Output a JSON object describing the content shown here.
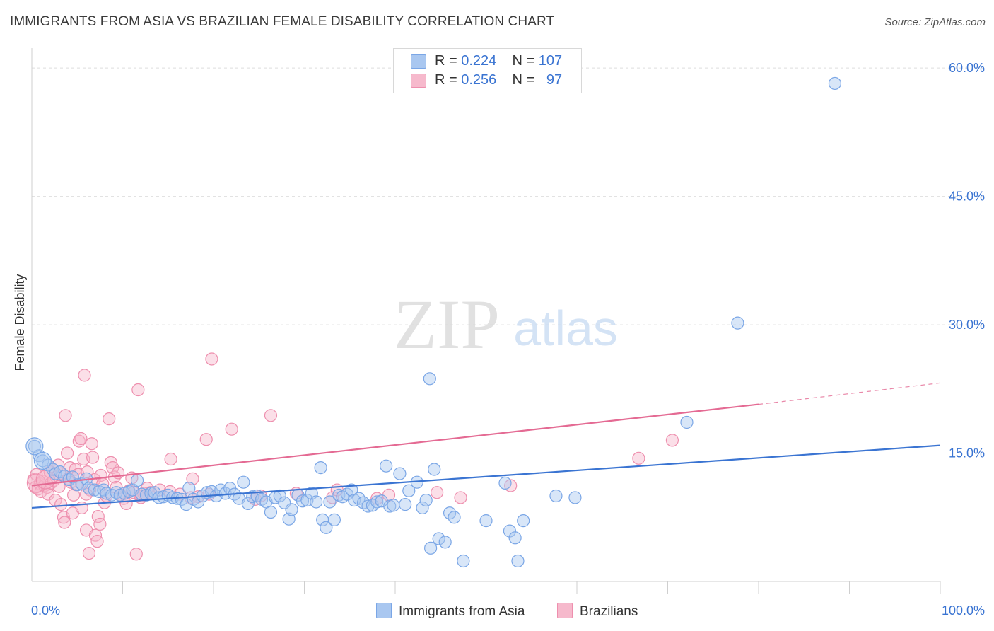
{
  "title": "IMMIGRANTS FROM ASIA VS BRAZILIAN FEMALE DISABILITY CORRELATION CHART",
  "source": "Source: ZipAtlas.com",
  "watermark": {
    "zip": "ZIP",
    "atlas": "atlas"
  },
  "legend_stats": [
    {
      "r_label": "R =",
      "r_value": "0.224",
      "n_label": "N =",
      "n_value": "107",
      "color": "#a9c7f0"
    },
    {
      "r_label": "R =",
      "r_value": "0.256",
      "n_label": "N =",
      "n_value": "97",
      "color": "#f6b9cc"
    }
  ],
  "bottom_legend": [
    {
      "label": "Immigrants from Asia",
      "color": "#a9c7f0"
    },
    {
      "label": "Brazilians",
      "color": "#f6b9cc"
    }
  ],
  "colors": {
    "blue_fill": "#a9c7f0",
    "blue_stroke": "#7aa6e6",
    "blue_line": "#3a74d2",
    "pink_fill": "#f6b9cc",
    "pink_stroke": "#ee8fae",
    "pink_line": "#e46a93",
    "axis_label": "#3a74d2",
    "grid": "#dedede"
  },
  "chart_data": {
    "type": "scatter",
    "title": "IMMIGRANTS FROM ASIA VS BRAZILIAN FEMALE DISABILITY CORRELATION CHART",
    "xlabel": "",
    "ylabel": "Female Disability",
    "xlim": [
      0,
      100
    ],
    "ylim": [
      0,
      61.5
    ],
    "x_tick_labels": [
      "0.0%",
      "100.0%"
    ],
    "y_ticks": [
      15,
      30,
      45,
      60
    ],
    "y_tick_labels": [
      "15.0%",
      "30.0%",
      "45.0%",
      "60.0%"
    ],
    "grid": "horizontal dashed",
    "legend_position": "top-center",
    "series": [
      {
        "name": "Immigrants from Asia",
        "r": 0.224,
        "n": 107,
        "trend": {
          "x": [
            0,
            100
          ],
          "y": [
            8.6,
            15.9
          ]
        },
        "points": [
          [
            0.3,
            15.8
          ],
          [
            0.8,
            14.7
          ],
          [
            1.2,
            14.1
          ],
          [
            1.8,
            13.6
          ],
          [
            2.3,
            13.1
          ],
          [
            2.6,
            12.6
          ],
          [
            3.1,
            12.8
          ],
          [
            3.6,
            12.3
          ],
          [
            4.1,
            11.9
          ],
          [
            4.5,
            12.2
          ],
          [
            5.0,
            11.3
          ],
          [
            5.5,
            11.4
          ],
          [
            6.0,
            12.0
          ],
          [
            6.3,
            10.9
          ],
          [
            6.9,
            10.7
          ],
          [
            7.4,
            10.5
          ],
          [
            7.9,
            10.7
          ],
          [
            8.2,
            10.3
          ],
          [
            8.8,
            10.1
          ],
          [
            9.3,
            10.4
          ],
          [
            9.7,
            10.1
          ],
          [
            10.2,
            10.3
          ],
          [
            10.7,
            10.5
          ],
          [
            11.1,
            10.7
          ],
          [
            11.6,
            11.8
          ],
          [
            12.1,
            10.2
          ],
          [
            12.6,
            10.1
          ],
          [
            13.1,
            10.3
          ],
          [
            13.5,
            10.4
          ],
          [
            14.0,
            9.8
          ],
          [
            14.5,
            9.9
          ],
          [
            15.0,
            10.1
          ],
          [
            15.5,
            9.8
          ],
          [
            16.0,
            9.7
          ],
          [
            16.5,
            9.6
          ],
          [
            17.0,
            9.0
          ],
          [
            17.3,
            10.9
          ],
          [
            17.8,
            9.6
          ],
          [
            18.3,
            9.3
          ],
          [
            18.8,
            10.0
          ],
          [
            19.3,
            10.4
          ],
          [
            19.8,
            10.5
          ],
          [
            20.3,
            10.0
          ],
          [
            20.8,
            10.7
          ],
          [
            21.3,
            10.3
          ],
          [
            21.8,
            10.9
          ],
          [
            22.3,
            10.2
          ],
          [
            22.8,
            9.7
          ],
          [
            23.3,
            11.6
          ],
          [
            23.8,
            9.1
          ],
          [
            24.3,
            9.9
          ],
          [
            24.8,
            10.0
          ],
          [
            25.3,
            9.6
          ],
          [
            25.8,
            9.3
          ],
          [
            26.3,
            8.1
          ],
          [
            26.8,
            9.8
          ],
          [
            27.3,
            10.0
          ],
          [
            27.8,
            9.2
          ],
          [
            28.3,
            7.3
          ],
          [
            28.6,
            8.4
          ],
          [
            29.3,
            10.1
          ],
          [
            29.8,
            9.4
          ],
          [
            30.3,
            9.5
          ],
          [
            30.8,
            10.3
          ],
          [
            31.3,
            9.3
          ],
          [
            31.8,
            13.3
          ],
          [
            32.0,
            7.2
          ],
          [
            32.4,
            6.3
          ],
          [
            32.8,
            9.3
          ],
          [
            33.3,
            7.2
          ],
          [
            33.8,
            10.1
          ],
          [
            34.2,
            9.9
          ],
          [
            34.7,
            10.2
          ],
          [
            35.2,
            10.7
          ],
          [
            35.5,
            9.5
          ],
          [
            36.0,
            9.7
          ],
          [
            36.5,
            9.2
          ],
          [
            37.0,
            8.8
          ],
          [
            37.5,
            8.9
          ],
          [
            38.0,
            9.3
          ],
          [
            38.5,
            9.4
          ],
          [
            39.0,
            13.5
          ],
          [
            39.4,
            8.8
          ],
          [
            39.8,
            8.9
          ],
          [
            40.5,
            12.6
          ],
          [
            41.1,
            9.0
          ],
          [
            41.5,
            10.6
          ],
          [
            42.4,
            11.6
          ],
          [
            43.0,
            8.6
          ],
          [
            43.4,
            9.5
          ],
          [
            43.9,
            3.9
          ],
          [
            44.3,
            13.1
          ],
          [
            44.8,
            5.0
          ],
          [
            45.5,
            4.6
          ],
          [
            46.0,
            8.0
          ],
          [
            46.5,
            7.5
          ],
          [
            47.5,
            2.4
          ],
          [
            50.0,
            7.1
          ],
          [
            52.1,
            11.5
          ],
          [
            52.6,
            5.9
          ],
          [
            53.2,
            5.1
          ],
          [
            53.5,
            2.4
          ],
          [
            54.1,
            7.1
          ],
          [
            57.7,
            10.0
          ],
          [
            59.8,
            9.8
          ],
          [
            72.1,
            18.6
          ],
          [
            77.7,
            30.2
          ],
          [
            88.4,
            58.2
          ],
          [
            43.8,
            23.7
          ]
        ]
      },
      {
        "name": "Brazilians",
        "r": 0.256,
        "n": 97,
        "trend": {
          "x": [
            0,
            80
          ],
          "y": [
            11.2,
            20.7
          ]
        },
        "trend_dashed": {
          "x": [
            80,
            100
          ],
          "y": [
            20.7,
            23.2
          ]
        },
        "points": [
          [
            0.2,
            11.9
          ],
          [
            0.4,
            11.0
          ],
          [
            0.5,
            12.5
          ],
          [
            0.7,
            10.8
          ],
          [
            0.9,
            11.4
          ],
          [
            1.0,
            10.5
          ],
          [
            1.2,
            11.7
          ],
          [
            1.4,
            11.2
          ],
          [
            1.5,
            12.3
          ],
          [
            1.7,
            11.0
          ],
          [
            1.8,
            10.2
          ],
          [
            2.0,
            12.8
          ],
          [
            2.1,
            11.5
          ],
          [
            2.3,
            13.1
          ],
          [
            2.4,
            11.8
          ],
          [
            2.6,
            9.5
          ],
          [
            2.7,
            12.2
          ],
          [
            2.9,
            13.6
          ],
          [
            3.0,
            11.1
          ],
          [
            3.2,
            9.0
          ],
          [
            3.3,
            12.6
          ],
          [
            3.5,
            7.5
          ],
          [
            3.6,
            6.9
          ],
          [
            3.7,
            19.4
          ],
          [
            3.9,
            15.0
          ],
          [
            4.0,
            12.0
          ],
          [
            4.2,
            13.3
          ],
          [
            4.3,
            11.6
          ],
          [
            4.5,
            8.0
          ],
          [
            4.6,
            10.1
          ],
          [
            4.8,
            13.1
          ],
          [
            4.9,
            11.3
          ],
          [
            5.1,
            12.5
          ],
          [
            5.2,
            16.4
          ],
          [
            5.4,
            16.7
          ],
          [
            5.5,
            8.6
          ],
          [
            5.7,
            14.3
          ],
          [
            5.8,
            24.1
          ],
          [
            6.0,
            6.0
          ],
          [
            6.1,
            12.8
          ],
          [
            6.3,
            3.3
          ],
          [
            6.4,
            10.7
          ],
          [
            6.6,
            16.1
          ],
          [
            6.7,
            14.5
          ],
          [
            6.9,
            11.9
          ],
          [
            7.0,
            5.4
          ],
          [
            7.2,
            4.7
          ],
          [
            7.3,
            7.6
          ],
          [
            7.5,
            6.7
          ],
          [
            7.6,
            12.4
          ],
          [
            7.8,
            11.4
          ],
          [
            8.0,
            9.2
          ],
          [
            8.2,
            10.0
          ],
          [
            8.5,
            19.0
          ],
          [
            8.7,
            13.9
          ],
          [
            8.9,
            13.3
          ],
          [
            9.1,
            12.2
          ],
          [
            9.3,
            11.0
          ],
          [
            9.5,
            12.7
          ],
          [
            9.8,
            10.1
          ],
          [
            10.1,
            9.7
          ],
          [
            10.4,
            9.1
          ],
          [
            10.7,
            10.6
          ],
          [
            11.0,
            12.1
          ],
          [
            11.2,
            10.4
          ],
          [
            11.5,
            3.2
          ],
          [
            11.7,
            22.4
          ],
          [
            12.0,
            9.8
          ],
          [
            12.3,
            10.3
          ],
          [
            12.7,
            10.9
          ],
          [
            13.1,
            10.4
          ],
          [
            14.1,
            10.7
          ],
          [
            15.3,
            14.3
          ],
          [
            16.3,
            10.2
          ],
          [
            17.5,
            9.8
          ],
          [
            17.7,
            12.0
          ],
          [
            19.2,
            16.6
          ],
          [
            19.5,
            10.2
          ],
          [
            19.8,
            26.0
          ],
          [
            22.0,
            17.8
          ],
          [
            26.3,
            19.4
          ],
          [
            33.1,
            9.8
          ],
          [
            33.6,
            10.7
          ],
          [
            38.0,
            9.7
          ],
          [
            39.3,
            10.1
          ],
          [
            44.6,
            10.4
          ],
          [
            47.2,
            9.8
          ],
          [
            52.7,
            11.2
          ],
          [
            66.8,
            14.4
          ],
          [
            70.5,
            16.5
          ],
          [
            24.6,
            9.6
          ],
          [
            29.1,
            10.3
          ],
          [
            6.0,
            10.2
          ],
          [
            12.1,
            10.0
          ],
          [
            15.2,
            10.5
          ],
          [
            18.3,
            9.9
          ],
          [
            25.2,
            10.0
          ]
        ]
      }
    ]
  }
}
